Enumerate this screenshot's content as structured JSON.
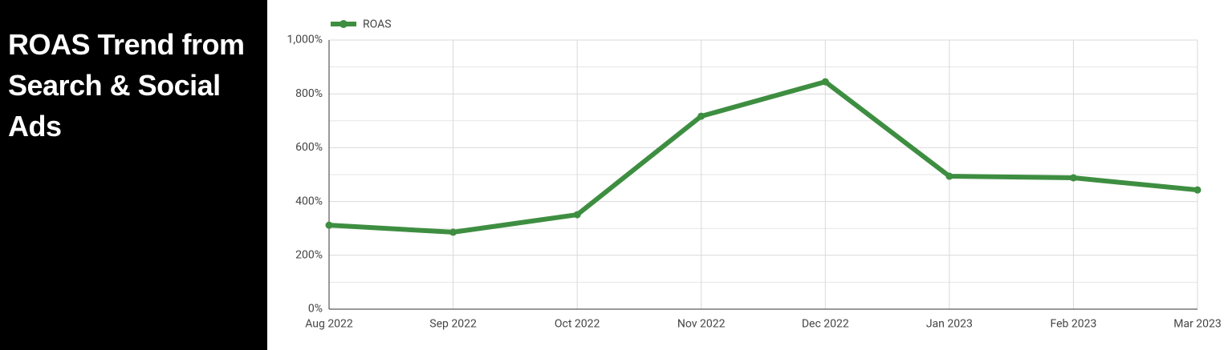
{
  "chart_data": {
    "type": "line",
    "title": "ROAS Trend from Search & Social Ads",
    "categories": [
      "Aug 2022",
      "Sep 2022",
      "Oct 2022",
      "Nov 2022",
      "Dec 2022",
      "Jan 2023",
      "Feb 2023",
      "Mar 2023"
    ],
    "series": [
      {
        "name": "ROAS",
        "color": "#3e8e41",
        "values": [
          312,
          286,
          351,
          717,
          845,
          494,
          488,
          443
        ]
      }
    ],
    "ylim": [
      0,
      1000
    ],
    "yticks": [
      {
        "value": 0,
        "label": "0%"
      },
      {
        "value": 200,
        "label": "200%"
      },
      {
        "value": 400,
        "label": "400%"
      },
      {
        "value": 600,
        "label": "600%"
      },
      {
        "value": 800,
        "label": "800%"
      },
      {
        "value": 1000,
        "label": "1,000%"
      }
    ],
    "minor_yticks": [
      100,
      300,
      500,
      700,
      900
    ],
    "grid": true,
    "legend": "top-left"
  }
}
